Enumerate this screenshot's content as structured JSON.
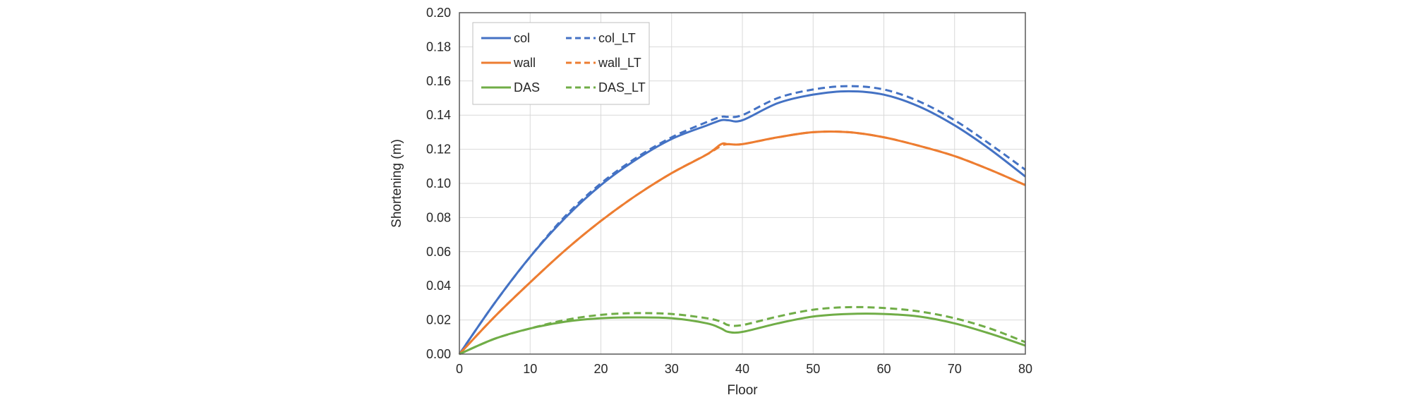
{
  "chart_data": {
    "type": "line",
    "title": "",
    "xlabel": "Floor",
    "ylabel": "Shortening (m)",
    "xlim": [
      0,
      80
    ],
    "ylim": [
      0,
      0.2
    ],
    "xticks": [
      0,
      10,
      20,
      30,
      40,
      50,
      60,
      70,
      80
    ],
    "yticks": [
      0,
      0.02,
      0.04,
      0.06,
      0.08,
      0.1,
      0.12,
      0.14,
      0.16,
      0.18,
      0.2
    ],
    "xtick_labels": [
      "0",
      "10",
      "20",
      "30",
      "40",
      "50",
      "60",
      "70",
      "80"
    ],
    "ytick_labels": [
      "0.00",
      "0.02",
      "0.04",
      "0.06",
      "0.08",
      "0.10",
      "0.12",
      "0.14",
      "0.16",
      "0.18",
      "0.20"
    ],
    "grid": true,
    "legend_position": "top-left",
    "series": [
      {
        "name": "col",
        "color": "#4472C4",
        "dash": "solid",
        "x": [
          0,
          5,
          10,
          15,
          20,
          25,
          30,
          35,
          37,
          38,
          40,
          45,
          50,
          55,
          60,
          65,
          70,
          75,
          80
        ],
        "y": [
          0,
          0.03,
          0.057,
          0.08,
          0.099,
          0.114,
          0.126,
          0.134,
          0.137,
          0.137,
          0.137,
          0.147,
          0.152,
          0.154,
          0.152,
          0.145,
          0.134,
          0.12,
          0.104
        ]
      },
      {
        "name": "col_LT",
        "color": "#4472C4",
        "dash": "dashed",
        "x": [
          0,
          5,
          10,
          15,
          20,
          25,
          30,
          35,
          37,
          38,
          40,
          45,
          50,
          55,
          60,
          65,
          70,
          75,
          80
        ],
        "y": [
          0,
          0.03,
          0.057,
          0.081,
          0.1,
          0.115,
          0.127,
          0.136,
          0.139,
          0.139,
          0.14,
          0.15,
          0.155,
          0.157,
          0.155,
          0.148,
          0.137,
          0.123,
          0.108
        ]
      },
      {
        "name": "wall",
        "color": "#ED7D31",
        "dash": "solid",
        "x": [
          0,
          5,
          10,
          15,
          20,
          25,
          30,
          35,
          37,
          38,
          40,
          45,
          50,
          55,
          60,
          65,
          70,
          75,
          80
        ],
        "y": [
          0,
          0.022,
          0.042,
          0.061,
          0.078,
          0.093,
          0.106,
          0.117,
          0.123,
          0.123,
          0.123,
          0.127,
          0.13,
          0.13,
          0.127,
          0.122,
          0.116,
          0.108,
          0.099
        ]
      },
      {
        "name": "wall_LT",
        "color": "#ED7D31",
        "dash": "dashed",
        "x": [
          0,
          5,
          10,
          15,
          20,
          25,
          30,
          35,
          37,
          38,
          40,
          45,
          50,
          55,
          60,
          65,
          70,
          75,
          80
        ],
        "y": [
          0,
          0.022,
          0.042,
          0.061,
          0.078,
          0.093,
          0.106,
          0.117,
          0.122,
          0.123,
          0.123,
          0.127,
          0.13,
          0.13,
          0.127,
          0.122,
          0.116,
          0.108,
          0.099
        ]
      },
      {
        "name": "DAS",
        "color": "#70AD47",
        "dash": "solid",
        "x": [
          0,
          5,
          10,
          15,
          20,
          25,
          30,
          35,
          37,
          38,
          40,
          45,
          50,
          55,
          60,
          65,
          70,
          75,
          80
        ],
        "y": [
          0,
          0.009,
          0.015,
          0.019,
          0.021,
          0.0215,
          0.021,
          0.018,
          0.015,
          0.013,
          0.013,
          0.018,
          0.022,
          0.0235,
          0.0235,
          0.022,
          0.018,
          0.012,
          0.005
        ]
      },
      {
        "name": "DAS_LT",
        "color": "#70AD47",
        "dash": "dashed",
        "x": [
          0,
          5,
          10,
          15,
          20,
          25,
          30,
          35,
          37,
          38,
          40,
          45,
          50,
          55,
          60,
          65,
          70,
          75,
          80
        ],
        "y": [
          0,
          0.009,
          0.015,
          0.02,
          0.023,
          0.024,
          0.0235,
          0.021,
          0.019,
          0.017,
          0.017,
          0.022,
          0.026,
          0.0275,
          0.027,
          0.025,
          0.021,
          0.015,
          0.007
        ]
      }
    ]
  }
}
